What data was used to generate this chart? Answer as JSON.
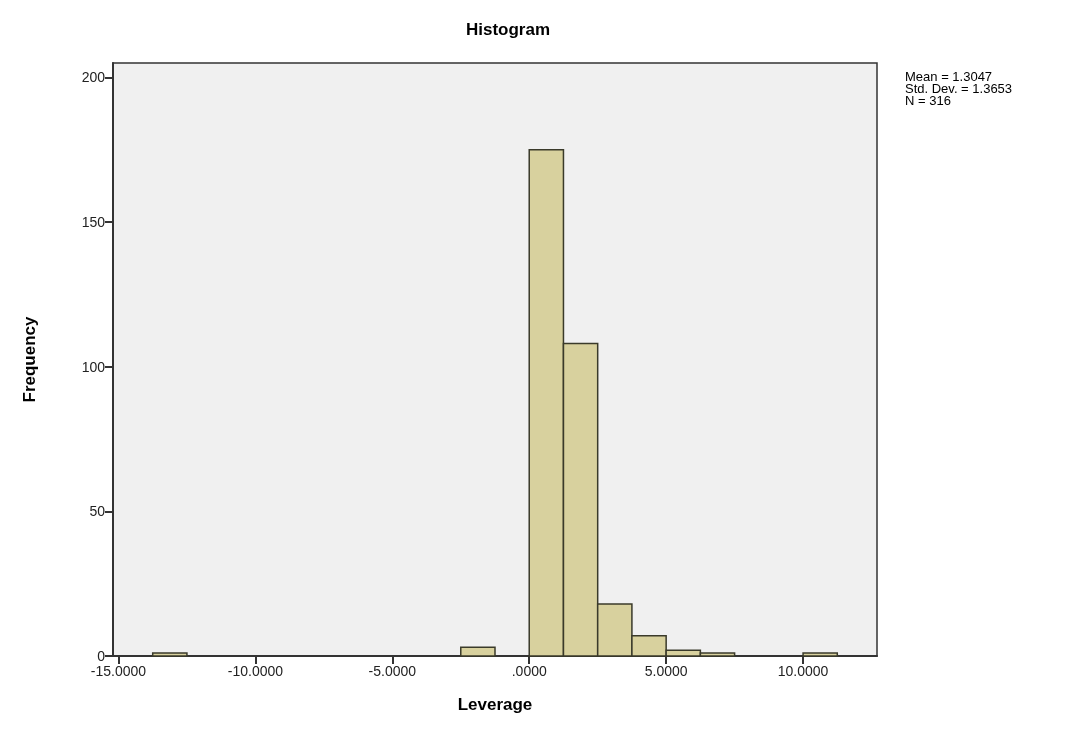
{
  "chart_data": {
    "type": "histogram",
    "title": "Histogram",
    "xlabel": "Leverage",
    "ylabel": "Frequency",
    "bins": [
      -13.75,
      -12.5,
      -11.25,
      -10,
      -8.75,
      -7.5,
      -6.25,
      -5,
      -3.75,
      -2.5,
      -1.25,
      0,
      1.25,
      2.5,
      3.75,
      5,
      6.25,
      7.5,
      8.75,
      10,
      11.25
    ],
    "values": [
      1,
      0,
      0,
      0,
      0,
      0,
      0,
      0,
      0,
      3,
      0,
      175,
      108,
      18,
      7,
      2,
      1,
      0,
      0,
      1
    ],
    "color": "#d8d19e",
    "xlim": [
      -15.2,
      12.7
    ],
    "xticks": [
      {
        "value": -15,
        "label": "-15.0000"
      },
      {
        "value": -10,
        "label": "-10.0000"
      },
      {
        "value": -5,
        "label": "-5.0000"
      },
      {
        "value": 0,
        "label": ".0000"
      },
      {
        "value": 5,
        "label": "5.0000"
      },
      {
        "value": 10,
        "label": "10.0000"
      }
    ],
    "ylim": [
      0,
      205
    ],
    "yticks": [
      0,
      50,
      100,
      150,
      200
    ],
    "grid": false,
    "annotations": [
      "Mean = 1.3047",
      "Std. Dev. = 1.3653",
      "N = 316"
    ]
  }
}
